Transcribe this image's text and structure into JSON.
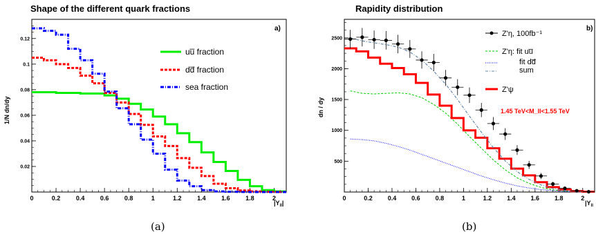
{
  "colors": {
    "u": "#00ee00",
    "d": "#ff0000",
    "sea": "#0000ff",
    "sum": "#6688aa",
    "data": "#000000"
  },
  "chart_data": [
    {
      "type": "line",
      "title": "Shape of the different quark fractions",
      "corner_label": "a)",
      "caption": "(a)",
      "ylabel": "1/N dn/dy",
      "xlabel": "|Y_ll|",
      "xlim": [
        0,
        2.1
      ],
      "ylim": [
        0,
        0.135
      ],
      "xticks": [
        "0",
        "0.2",
        "0.4",
        "0.6",
        "0.8",
        "1",
        "1.2",
        "1.4",
        "1.6",
        "1.8",
        "2"
      ],
      "yticks": [
        "0.02",
        "0.04",
        "0.06",
        "0.08",
        "0.1",
        "0.12"
      ],
      "legend_position": "top-right",
      "bin_edges": [
        0,
        0.1,
        0.2,
        0.3,
        0.4,
        0.5,
        0.6,
        0.7,
        0.8,
        0.9,
        1.0,
        1.1,
        1.2,
        1.3,
        1.4,
        1.5,
        1.6,
        1.7,
        1.8,
        1.9,
        2.0,
        2.1
      ],
      "series": [
        {
          "name": "uu̅ fraction",
          "style": "solid",
          "values": [
            0.078,
            0.078,
            0.0775,
            0.0775,
            0.077,
            0.077,
            0.0755,
            0.073,
            0.069,
            0.0645,
            0.059,
            0.053,
            0.046,
            0.039,
            0.031,
            0.0235,
            0.0165,
            0.0095,
            0.0045,
            0.0015,
            0.0005
          ]
        },
        {
          "name": "dd̅ fraction",
          "style": "dashed",
          "values": [
            0.105,
            0.103,
            0.1,
            0.097,
            0.091,
            0.085,
            0.0775,
            0.07,
            0.061,
            0.0525,
            0.0435,
            0.036,
            0.0265,
            0.019,
            0.0125,
            0.0065,
            0.003,
            0.0012,
            0.0005,
            0.0002,
            0.0001
          ]
        },
        {
          "name": "sea fraction",
          "style": "dashdot",
          "values": [
            0.128,
            0.126,
            0.123,
            0.112,
            0.103,
            0.0925,
            0.0785,
            0.0655,
            0.053,
            0.041,
            0.03,
            0.0175,
            0.009,
            0.0045,
            0.0015,
            0.0005,
            0.0002,
            0.0001,
            0.0,
            0.0,
            0.0
          ]
        }
      ]
    },
    {
      "type": "line",
      "title": "Rapidity distribution",
      "corner_label": "b)",
      "caption": "(b)",
      "ylabel": "dn / dy",
      "xlabel": "|Y_ll|",
      "xlim": [
        0,
        2.1
      ],
      "ylim": [
        0,
        2800
      ],
      "xticks": [
        "0",
        "0.2",
        "0.4",
        "0.6",
        "0.8",
        "1",
        "1.2",
        "1.4",
        "1.6",
        "1.8",
        "2"
      ],
      "yticks": [
        "500",
        "1000",
        "1500",
        "2000",
        "2500"
      ],
      "legend_position": "top-right",
      "annotation": "1.45 TeV<M_ll<1.55 TeV",
      "legend": {
        "data": "Z'η, 100fb⁻¹",
        "fit_u": "Z'η: fit uu̅",
        "fit_d": "fit dd̅",
        "sum": "sum",
        "psi": "Z'ψ"
      },
      "bin_edges": [
        0,
        0.1,
        0.2,
        0.3,
        0.4,
        0.5,
        0.6,
        0.7,
        0.8,
        0.9,
        1.0,
        1.1,
        1.2,
        1.3,
        1.4,
        1.5,
        1.6,
        1.7,
        1.8,
        1.9,
        2.0,
        2.1
      ],
      "series": [
        {
          "name": "Z'η, 100fb⁻¹",
          "kind": "points",
          "x": [
            0.05,
            0.15,
            0.25,
            0.35,
            0.45,
            0.55,
            0.65,
            0.75,
            0.85,
            0.95,
            1.05,
            1.15,
            1.25,
            1.35,
            1.45,
            1.55,
            1.65,
            1.75,
            1.85,
            1.95,
            2.05
          ],
          "y": [
            2480,
            2510,
            2470,
            2460,
            2400,
            2320,
            2140,
            2100,
            1850,
            1700,
            1570,
            1330,
            1110,
            940,
            680,
            440,
            260,
            130,
            60,
            20,
            5
          ],
          "err": [
            150,
            150,
            150,
            150,
            150,
            145,
            140,
            140,
            130,
            130,
            125,
            115,
            105,
            95,
            80,
            65,
            50,
            35,
            25,
            15,
            8
          ]
        },
        {
          "name": "fit uu̅",
          "kind": "curve",
          "x": [
            0.05,
            0.15,
            0.25,
            0.35,
            0.45,
            0.55,
            0.65,
            0.75,
            0.85,
            0.95,
            1.05,
            1.15,
            1.25,
            1.35,
            1.45,
            1.55,
            1.65,
            1.75,
            1.85,
            1.95,
            2.05
          ],
          "y": [
            1640,
            1600,
            1590,
            1600,
            1610,
            1590,
            1530,
            1420,
            1280,
            1100,
            900,
            710,
            520,
            360,
            230,
            140,
            75,
            35,
            15,
            5,
            2
          ]
        },
        {
          "name": "fit dd̅",
          "kind": "curve",
          "x": [
            0.05,
            0.15,
            0.25,
            0.35,
            0.45,
            0.55,
            0.65,
            0.75,
            0.85,
            0.95,
            1.05,
            1.15,
            1.25,
            1.35,
            1.45,
            1.55,
            1.65,
            1.75,
            1.85,
            1.95,
            2.05
          ],
          "y": [
            860,
            850,
            830,
            790,
            740,
            680,
            610,
            540,
            470,
            400,
            330,
            260,
            200,
            145,
            100,
            65,
            40,
            22,
            10,
            4,
            1
          ]
        },
        {
          "name": "sum",
          "kind": "curve",
          "x": [
            0.05,
            0.15,
            0.25,
            0.35,
            0.45,
            0.55,
            0.65,
            0.75,
            0.85,
            0.95,
            1.05,
            1.15,
            1.25,
            1.35,
            1.45,
            1.55,
            1.65,
            1.75,
            1.85,
            1.95,
            2.05
          ],
          "y": [
            2500,
            2450,
            2420,
            2390,
            2350,
            2270,
            2140,
            1960,
            1750,
            1500,
            1230,
            970,
            720,
            505,
            330,
            205,
            115,
            57,
            25,
            9,
            3
          ]
        },
        {
          "name": "Z'ψ",
          "kind": "step",
          "values": [
            2330,
            2280,
            2180,
            2080,
            2010,
            1910,
            1770,
            1580,
            1400,
            1200,
            1000,
            880,
            710,
            540,
            380,
            270,
            160,
            80,
            40,
            15,
            5
          ]
        }
      ]
    }
  ]
}
